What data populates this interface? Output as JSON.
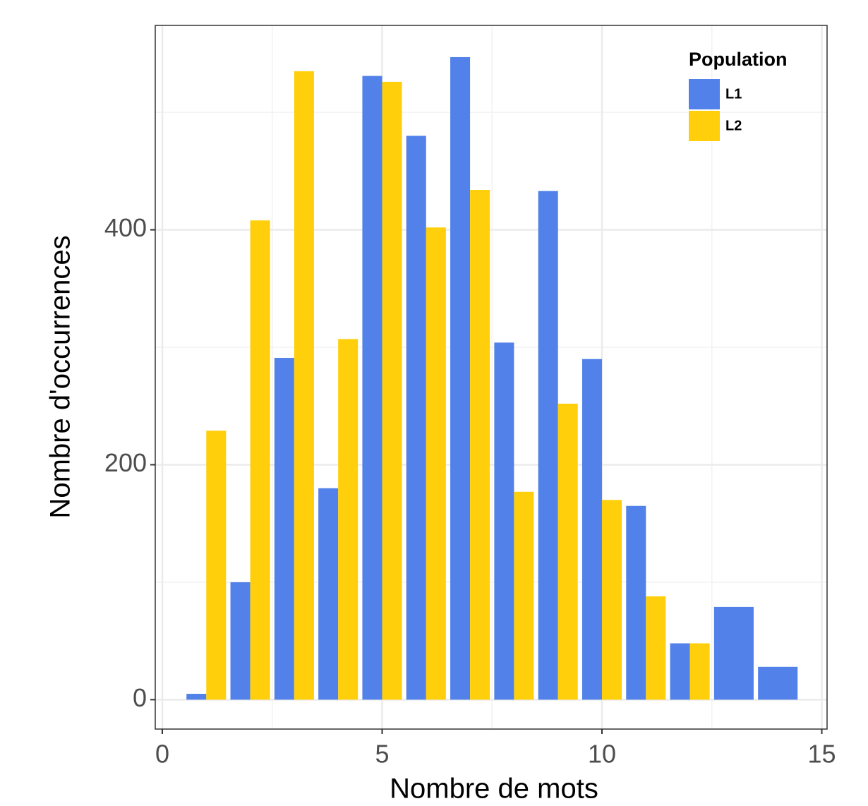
{
  "chart_data": {
    "type": "bar",
    "xlabel": "Nombre de mots",
    "ylabel": "Nombre d'occurrences",
    "legend_title": "Population",
    "legend": "top-right",
    "grid": true,
    "x": [
      1,
      2,
      3,
      4,
      5,
      6,
      7,
      8,
      9,
      10,
      11,
      12,
      13,
      14
    ],
    "series": [
      {
        "name": "L1",
        "color": "#5181e9",
        "values": [
          5,
          100,
          291,
          180,
          531,
          480,
          547,
          304,
          433,
          290,
          165,
          48,
          79,
          28
        ]
      },
      {
        "name": "L2",
        "color": "#fecf0a",
        "values": [
          229,
          408,
          535,
          307,
          526,
          402,
          434,
          177,
          252,
          170,
          88,
          48,
          null,
          null
        ]
      }
    ],
    "xlim": [
      -0.16,
      15.12
    ],
    "xticks": [
      0,
      5,
      10,
      15
    ],
    "ylim": [
      -25,
      574
    ],
    "yticks": [
      0,
      200,
      400
    ]
  }
}
